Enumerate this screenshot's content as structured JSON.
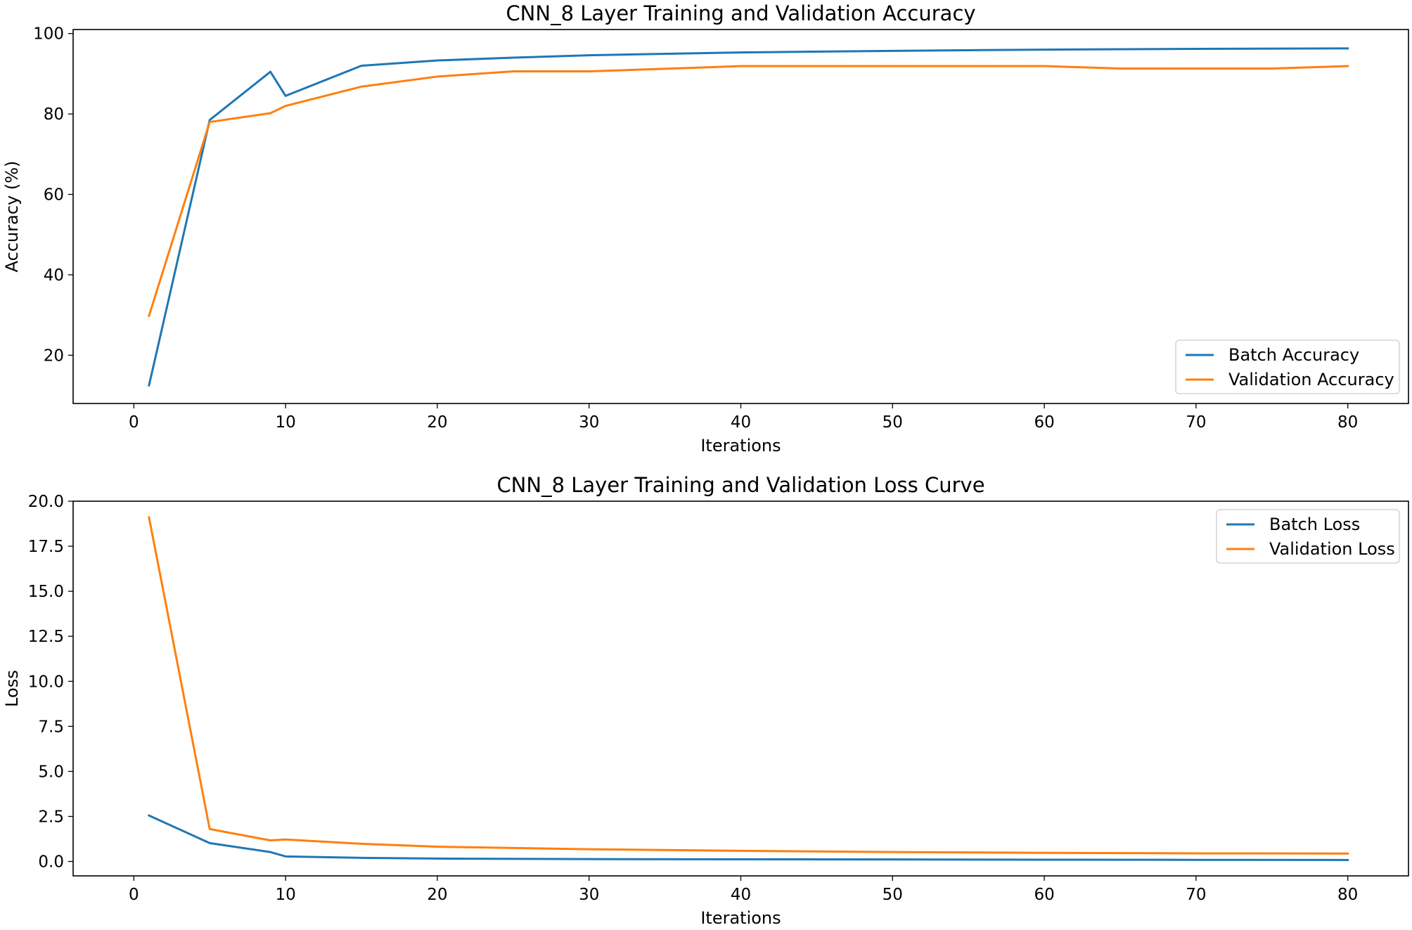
{
  "figure_title": "",
  "chart_data": [
    {
      "type": "line",
      "title": "CNN_8 Layer Training and Validation Accuracy",
      "xlabel": "Iterations",
      "ylabel": "Accuracy (%)",
      "xlim": [
        -4,
        84
      ],
      "ylim": [
        8,
        101
      ],
      "xticks": [
        0,
        10,
        20,
        30,
        40,
        50,
        60,
        70,
        80
      ],
      "yticks": [
        20,
        40,
        60,
        80,
        100
      ],
      "xtick_labels": [
        "0",
        "10",
        "20",
        "30",
        "40",
        "50",
        "60",
        "70",
        "80"
      ],
      "ytick_labels": [
        "20",
        "40",
        "60",
        "80",
        "100"
      ],
      "grid": false,
      "legend_position": "lower right",
      "series": [
        {
          "name": "Batch Accuracy",
          "color": "#1f77b4",
          "x": [
            1,
            5,
            9,
            10,
            15,
            20,
            25,
            30,
            40,
            50,
            60,
            70,
            80
          ],
          "y": [
            12.5,
            78.5,
            90.5,
            84.5,
            92.0,
            93.3,
            94.0,
            94.6,
            95.3,
            95.7,
            96.0,
            96.2,
            96.3
          ]
        },
        {
          "name": "Validation Accuracy",
          "color": "#ff7f0e",
          "x": [
            1,
            5,
            9,
            10,
            15,
            20,
            25,
            30,
            40,
            50,
            60,
            65,
            75,
            80
          ],
          "y": [
            29.8,
            78.0,
            80.2,
            82.0,
            86.8,
            89.3,
            90.6,
            90.6,
            91.9,
            91.9,
            91.9,
            91.3,
            91.3,
            91.9
          ]
        }
      ]
    },
    {
      "type": "line",
      "title": "CNN_8 Layer Training and Validation Loss Curve",
      "xlabel": "Iterations",
      "ylabel": "Loss",
      "xlim": [
        -4,
        84
      ],
      "ylim": [
        -0.8,
        20.0
      ],
      "xticks": [
        0,
        10,
        20,
        30,
        40,
        50,
        60,
        70,
        80
      ],
      "yticks": [
        0.0,
        2.5,
        5.0,
        7.5,
        10.0,
        12.5,
        15.0,
        17.5,
        20.0
      ],
      "xtick_labels": [
        "0",
        "10",
        "20",
        "30",
        "40",
        "50",
        "60",
        "70",
        "80"
      ],
      "ytick_labels": [
        "0.0",
        "2.5",
        "5.0",
        "7.5",
        "10.0",
        "12.5",
        "15.0",
        "17.5",
        "20.0"
      ],
      "grid": false,
      "legend_position": "upper right",
      "series": [
        {
          "name": "Batch Loss",
          "color": "#1f77b4",
          "x": [
            1,
            5,
            9,
            10,
            15,
            20,
            30,
            40,
            50,
            60,
            70,
            80
          ],
          "y": [
            2.55,
            1.02,
            0.52,
            0.28,
            0.2,
            0.16,
            0.13,
            0.12,
            0.11,
            0.1,
            0.09,
            0.08
          ]
        },
        {
          "name": "Validation Loss",
          "color": "#ff7f0e",
          "x": [
            1,
            5,
            9,
            10,
            15,
            20,
            30,
            40,
            50,
            60,
            70,
            80
          ],
          "y": [
            19.1,
            1.8,
            1.17,
            1.22,
            0.98,
            0.82,
            0.68,
            0.59,
            0.52,
            0.48,
            0.45,
            0.44
          ]
        }
      ]
    }
  ]
}
